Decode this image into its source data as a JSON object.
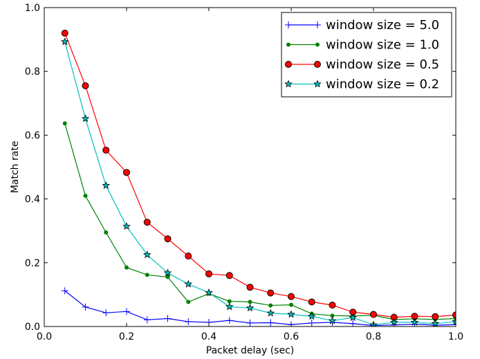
{
  "chart_data": {
    "type": "line",
    "title": "",
    "xlabel": "Packet delay (sec)",
    "ylabel": "Match rate",
    "xlim": [
      0.0,
      1.0
    ],
    "ylim": [
      0.0,
      1.0
    ],
    "xticks": [
      0.0,
      0.2,
      0.4,
      0.6,
      0.8,
      1.0
    ],
    "xtick_labels": [
      "0.0",
      "0.2",
      "0.4",
      "0.6",
      "0.8",
      "1.0"
    ],
    "yticks": [
      0.0,
      0.2,
      0.4,
      0.6,
      0.8,
      1.0
    ],
    "ytick_labels": [
      "0.0",
      "0.2",
      "0.4",
      "0.6",
      "0.8",
      "1.0"
    ],
    "grid": false,
    "legend_position": "top-right",
    "x": [
      0.05,
      0.1,
      0.15,
      0.2,
      0.25,
      0.3,
      0.35,
      0.4,
      0.45,
      0.5,
      0.55,
      0.6,
      0.65,
      0.7,
      0.75,
      0.8,
      0.85,
      0.9,
      0.95,
      1.0
    ],
    "series": [
      {
        "name": "window size = 5.0",
        "color": "#0000ff",
        "marker": "plus",
        "values": [
          0.112,
          0.061,
          0.043,
          0.047,
          0.021,
          0.025,
          0.015,
          0.013,
          0.019,
          0.011,
          0.012,
          0.006,
          0.011,
          0.013,
          0.009,
          0.003,
          0.005,
          0.007,
          0.004,
          0.006
        ]
      },
      {
        "name": "window size = 1.0",
        "color": "#008000",
        "marker": "dot",
        "values": [
          0.637,
          0.41,
          0.295,
          0.185,
          0.162,
          0.155,
          0.077,
          0.103,
          0.079,
          0.077,
          0.066,
          0.068,
          0.04,
          0.034,
          0.033,
          0.035,
          0.022,
          0.024,
          0.022,
          0.025
        ]
      },
      {
        "name": "window size = 0.5",
        "color": "#ff0000",
        "marker": "circle",
        "values": [
          0.92,
          0.755,
          0.553,
          0.483,
          0.327,
          0.275,
          0.221,
          0.165,
          0.16,
          0.123,
          0.105,
          0.094,
          0.077,
          0.067,
          0.045,
          0.038,
          0.029,
          0.032,
          0.031,
          0.036
        ]
      },
      {
        "name": "window size = 0.2",
        "color": "#00bfbf",
        "marker": "star",
        "values": [
          0.893,
          0.652,
          0.442,
          0.314,
          0.225,
          0.168,
          0.133,
          0.106,
          0.062,
          0.058,
          0.042,
          0.038,
          0.032,
          0.018,
          0.028,
          0.005,
          0.013,
          0.013,
          0.009,
          0.015
        ]
      }
    ]
  }
}
